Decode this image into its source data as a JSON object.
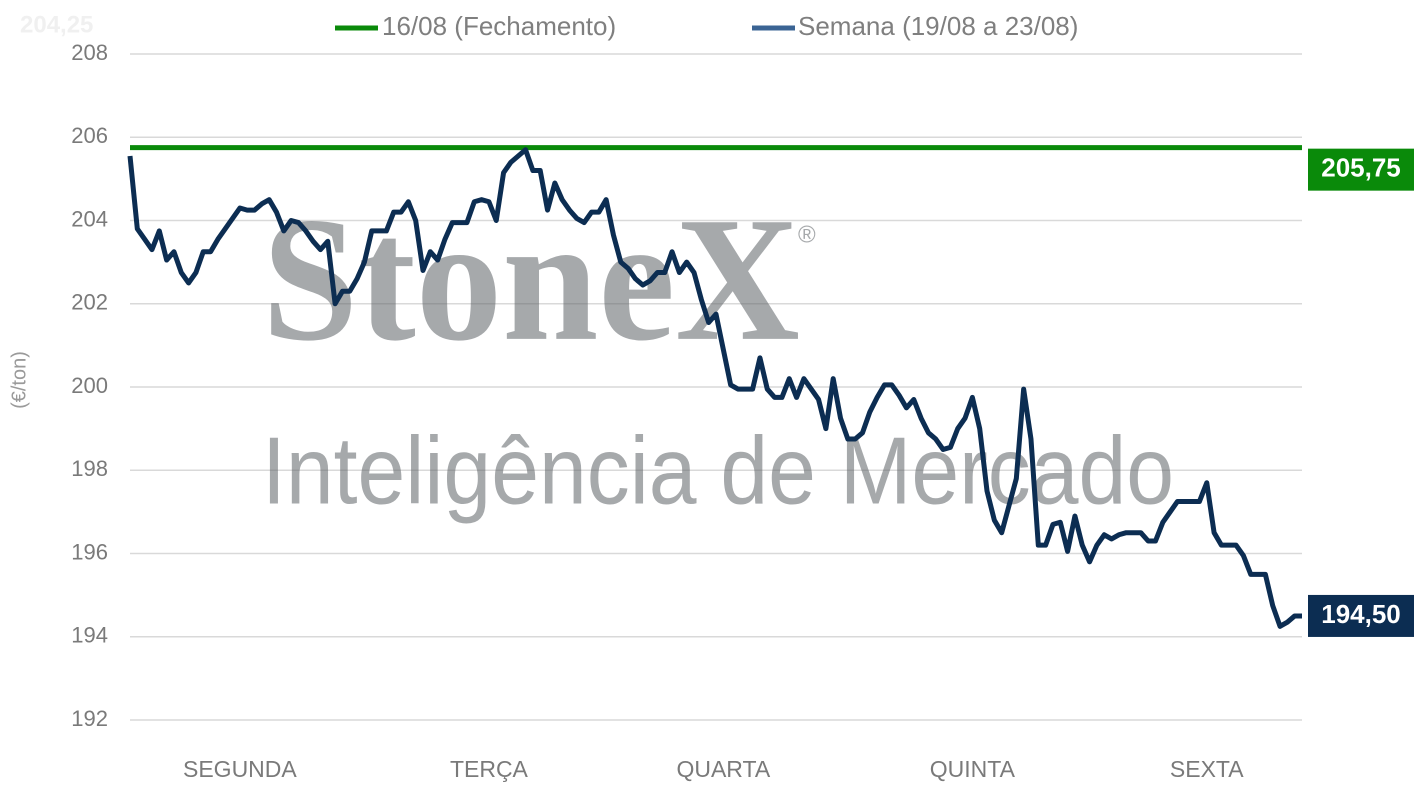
{
  "chart_data": {
    "type": "line",
    "annotation": "204,25",
    "watermark": {
      "brand": "StoneX",
      "mark": "®",
      "tagline": "Inteligência de Mercado"
    },
    "y_label": "(€/ton)",
    "ylim": [
      192,
      208
    ],
    "yticks": [
      192,
      194,
      196,
      198,
      200,
      202,
      204,
      206,
      208
    ],
    "grid": true,
    "categories": [
      null,
      null,
      null,
      null,
      null,
      null,
      null,
      null,
      null,
      null,
      null,
      null,
      null,
      null,
      null,
      "SEGUNDA",
      null,
      null,
      null,
      null,
      null,
      null,
      null,
      null,
      null,
      null,
      null,
      null,
      null,
      null,
      null,
      null,
      null,
      null,
      null,
      null,
      null,
      null,
      null,
      null,
      null,
      null,
      null,
      null,
      null,
      null,
      null,
      null,
      null,
      "TERÇA",
      null,
      null,
      null,
      null,
      null,
      null,
      null,
      null,
      null,
      null,
      null,
      null,
      null,
      null,
      null,
      null,
      null,
      null,
      null,
      null,
      null,
      null,
      null,
      null,
      null,
      null,
      null,
      null,
      null,
      null,
      null,
      "QUARTA",
      null,
      null,
      null,
      null,
      null,
      null,
      null,
      null,
      null,
      null,
      null,
      null,
      null,
      null,
      null,
      null,
      null,
      null,
      null,
      null,
      null,
      null,
      null,
      null,
      null,
      null,
      null,
      null,
      null,
      null,
      null,
      null,
      null,
      "QUINTA",
      null,
      null,
      null,
      null,
      null,
      null,
      null,
      null,
      null,
      null,
      null,
      null,
      null,
      null,
      null,
      null,
      null,
      null,
      null,
      null,
      null,
      null,
      null,
      null,
      null,
      null,
      null,
      null,
      null,
      null,
      null,
      "SEXTA",
      null,
      null,
      null,
      null,
      null,
      null,
      null,
      null,
      null,
      null,
      null,
      null,
      null
    ],
    "series": [
      {
        "name": "Semana (19/08 a 23/08)",
        "color": "#0c2d52",
        "legend_color": "#3b6494",
        "last_label": "194,50",
        "values": [
          205.55,
          203.8,
          203.55,
          203.3,
          203.75,
          203.05,
          203.25,
          202.75,
          202.5,
          202.75,
          203.25,
          203.25,
          203.55,
          203.8,
          204.05,
          204.3,
          204.25,
          204.25,
          204.4,
          204.5,
          204.2,
          203.75,
          204.0,
          203.95,
          203.75,
          203.5,
          203.3,
          203.5,
          202.0,
          202.3,
          202.3,
          202.6,
          203.0,
          203.75,
          203.75,
          203.75,
          204.2,
          204.2,
          204.45,
          204.0,
          202.8,
          203.25,
          203.05,
          203.55,
          203.95,
          203.95,
          203.95,
          204.45,
          204.5,
          204.45,
          204.0,
          205.15,
          205.4,
          205.55,
          205.7,
          205.2,
          205.2,
          204.25,
          204.9,
          204.5,
          204.25,
          204.05,
          203.95,
          204.2,
          204.2,
          204.5,
          203.65,
          203.0,
          202.85,
          202.6,
          202.45,
          202.55,
          202.75,
          202.75,
          203.25,
          202.75,
          203.0,
          202.75,
          202.1,
          201.55,
          201.75,
          200.9,
          200.05,
          199.95,
          199.95,
          199.95,
          200.7,
          199.95,
          199.75,
          199.75,
          200.2,
          199.75,
          200.2,
          199.95,
          199.7,
          199.0,
          200.2,
          199.25,
          198.75,
          198.75,
          198.9,
          199.4,
          199.75,
          200.05,
          200.05,
          199.8,
          199.5,
          199.7,
          199.25,
          198.9,
          198.75,
          198.5,
          198.55,
          199.0,
          199.25,
          199.75,
          199.0,
          197.5,
          196.8,
          196.5,
          197.15,
          197.8,
          199.95,
          198.75,
          196.2,
          196.2,
          196.7,
          196.75,
          196.05,
          196.9,
          196.2,
          195.8,
          196.2,
          196.45,
          196.35,
          196.45,
          196.5,
          196.5,
          196.5,
          196.3,
          196.3,
          196.75,
          197.0,
          197.25,
          197.25,
          197.25,
          197.25,
          197.7,
          196.5,
          196.2,
          196.2,
          196.2,
          195.95,
          195.5,
          195.5,
          195.5,
          194.75,
          194.25,
          194.35,
          194.5,
          194.5
        ]
      }
    ],
    "reference_lines": [
      {
        "name": "16/08 (Fechamento)",
        "color": "#0a8a0a",
        "value": 205.75,
        "value_label": "205,75"
      }
    ]
  }
}
